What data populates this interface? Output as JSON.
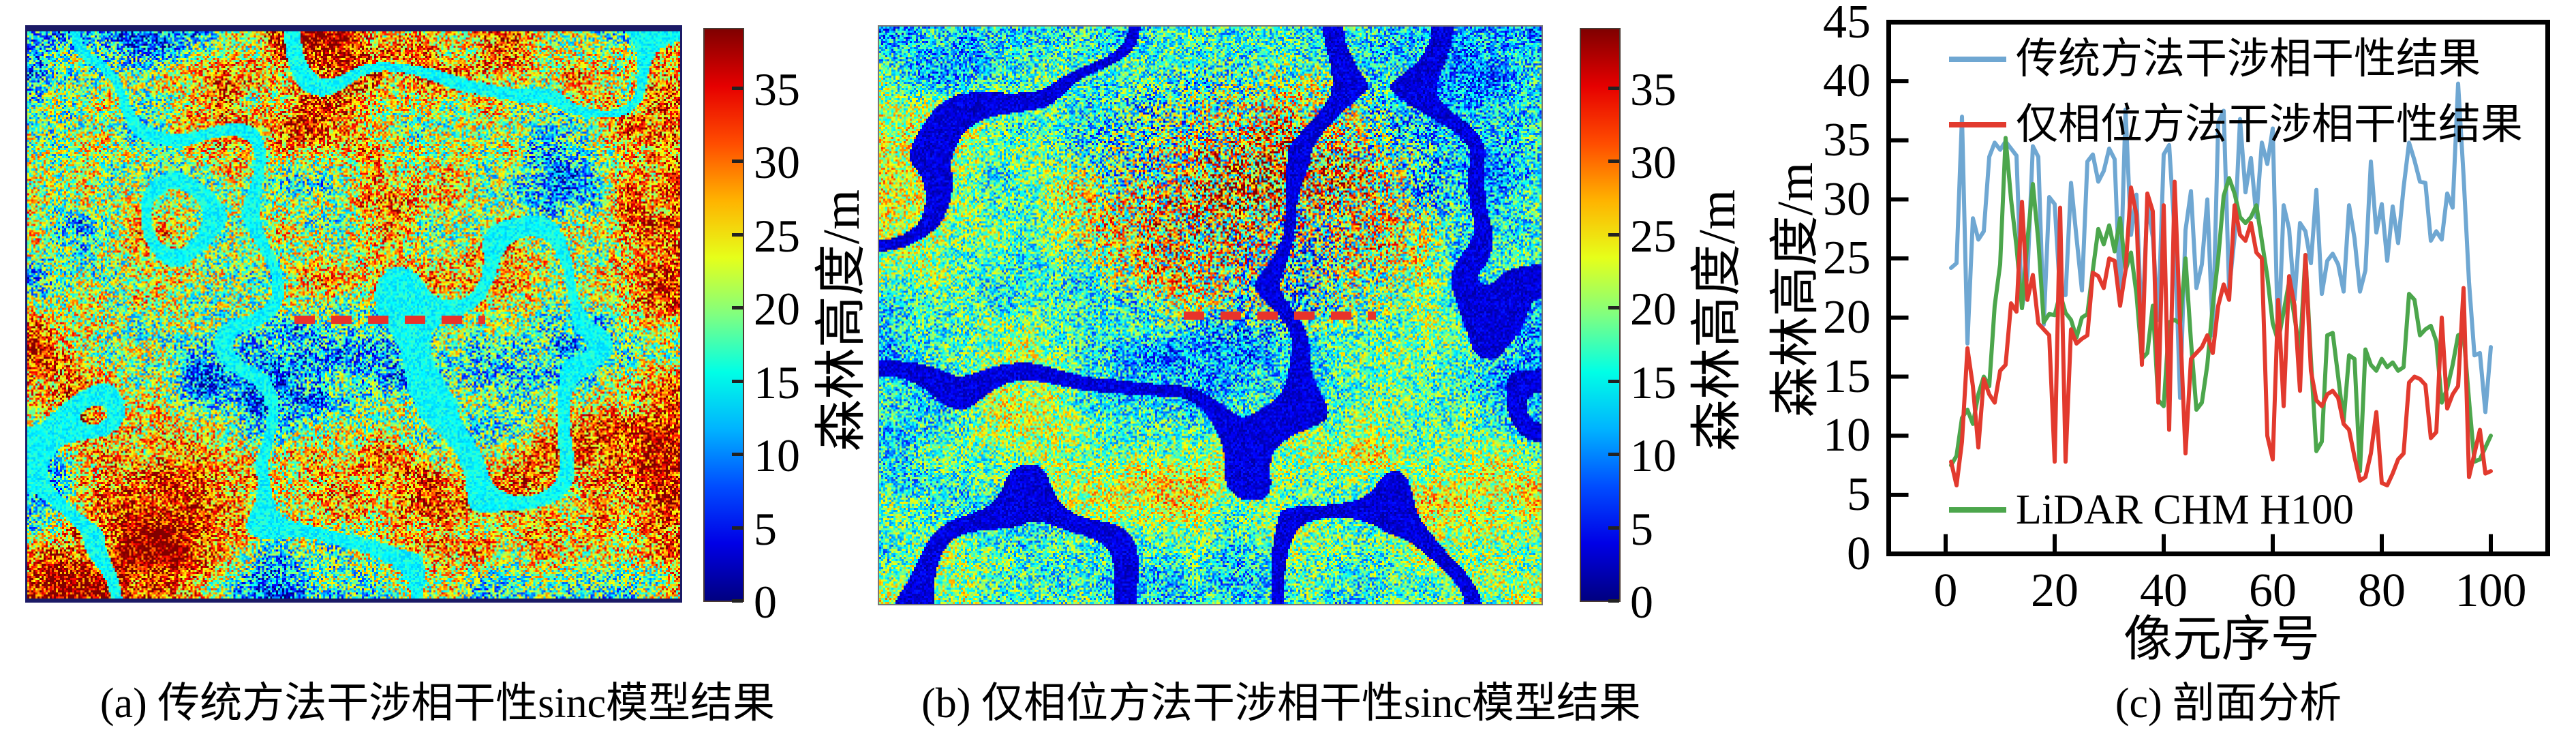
{
  "panels": {
    "a": {
      "caption": "(a) 传统方法干涉相干性sinc模型结果",
      "colorbar": {
        "label": "森林高度/m",
        "ticks": [
          35,
          30,
          25,
          20,
          15,
          10,
          5,
          0
        ],
        "vmin": 0,
        "vmax": 39
      }
    },
    "b": {
      "caption": "(b) 仅相位方法干涉相干性sinc模型结果",
      "colorbar": {
        "label": "森林高度/m",
        "ticks": [
          35,
          30,
          25,
          20,
          15,
          10,
          5,
          0
        ],
        "vmin": 0,
        "vmax": 39
      }
    },
    "c": {
      "caption": "(c) 剖面分析",
      "xlabel": "像元序号",
      "ylabel": "森林高度/m"
    }
  },
  "heatmap_meta": {
    "colormap": "jet",
    "profile_dash_color": "#E8332A",
    "panel_a_border_color": "#1B1A66"
  },
  "chart_data": {
    "type": "line",
    "title": "(c) 剖面分析",
    "xlabel": "像元序号",
    "ylabel": "森林高度/m",
    "xlim": [
      0,
      110
    ],
    "ylim": [
      0,
      45
    ],
    "xticks": [
      0,
      20,
      40,
      60,
      80,
      100
    ],
    "yticks": [
      0,
      5,
      10,
      15,
      20,
      25,
      30,
      35,
      40,
      45
    ],
    "grid": false,
    "x_start": 1,
    "x_step": 1,
    "legend_position": "inside top-left (series 1,2) and inside bottom-left (series 3)",
    "series": [
      {
        "name": "传统方法干涉相干性结果",
        "color": "#6FA7D2",
        "values": [
          24.2,
          24.6,
          37.0,
          17.8,
          28.4,
          26.6,
          27.3,
          33.6,
          34.8,
          34.2,
          34.9,
          34.3,
          33.7,
          20.8,
          23.5,
          34.5,
          33.6,
          19.4,
          30.2,
          29.6,
          22.0,
          21.9,
          31.4,
          26.8,
          22.3,
          33.2,
          33.8,
          31.5,
          32.4,
          34.3,
          33.4,
          21.7,
          37.6,
          27.0,
          30.4,
          18.7,
          29.7,
          26.8,
          19.8,
          33.8,
          34.6,
          27.2,
          13.2,
          27.4,
          30.7,
          22.5,
          24.5,
          30.0,
          18.5,
          36.5,
          37.5,
          22.4,
          26.8,
          36.8,
          30.6,
          33.5,
          28.5,
          34.8,
          33.0,
          36.0,
          17.5,
          29.5,
          27.5,
          21.5,
          28.0,
          27.3,
          24.6,
          30.8,
          22.0,
          24.8,
          25.4,
          24.5,
          22.2,
          29.5,
          26.7,
          22.2,
          24.0,
          33.2,
          27.2,
          29.6,
          24.8,
          29.4,
          26.3,
          31.0,
          34.8,
          33.3,
          31.5,
          31.4,
          26.5,
          27.3,
          26.6,
          30.5,
          29.3,
          39.8,
          32.0,
          23.0,
          16.8,
          17.0,
          12.0,
          17.5
        ]
      },
      {
        "name": "仅相位方法干涉相干性结果",
        "color": "#E23A2E",
        "values": [
          7.8,
          5.8,
          9.5,
          17.4,
          14.2,
          9.0,
          14.8,
          13.5,
          12.8,
          15.5,
          16.0,
          21.2,
          20.5,
          29.8,
          21.5,
          23.6,
          19.5,
          19.0,
          18.5,
          7.8,
          29.3,
          7.8,
          19.0,
          17.8,
          18.2,
          18.5,
          23.8,
          23.5,
          22.5,
          25.0,
          24.8,
          21.0,
          24.0,
          31.0,
          28.7,
          16.0,
          30.5,
          29.0,
          12.8,
          29.5,
          10.5,
          31.5,
          19.5,
          8.5,
          16.5,
          17.0,
          17.5,
          18.5,
          17.0,
          21.0,
          22.8,
          21.5,
          29.5,
          27.0,
          26.5,
          28.0,
          25.5,
          25.0,
          10.0,
          8.0,
          21.5,
          12.5,
          23.5,
          21.0,
          13.8,
          25.3,
          15.5,
          13.0,
          12.5,
          13.5,
          13.8,
          13.2,
          11.0,
          10.5,
          8.2,
          6.2,
          6.5,
          8.5,
          12.0,
          6.0,
          5.8,
          6.8,
          8.0,
          8.5,
          14.5,
          15.0,
          14.8,
          14.3,
          9.8,
          10.3,
          20.0,
          12.3,
          13.5,
          14.2,
          22.5,
          6.5,
          8.5,
          10.5,
          6.8,
          7.0
        ]
      },
      {
        "name": "LiDAR CHM H100",
        "color": "#4CA64C",
        "values": [
          7.5,
          8.3,
          11.5,
          12.2,
          11.0,
          13.5,
          15.0,
          14.2,
          21.0,
          24.5,
          35.2,
          30.0,
          26.0,
          20.8,
          26.5,
          31.3,
          26.5,
          19.6,
          20.3,
          20.2,
          22.0,
          20.4,
          19.8,
          18.3,
          20.0,
          20.3,
          24.0,
          27.5,
          26.2,
          27.8,
          25.6,
          28.4,
          24.0,
          25.5,
          22.0,
          16.5,
          17.0,
          21.0,
          13.0,
          12.5,
          19.6,
          19.8,
          19.5,
          25.0,
          18.0,
          12.2,
          12.8,
          16.0,
          21.0,
          25.0,
          30.3,
          31.8,
          30.5,
          28.5,
          28.0,
          28.5,
          29.5,
          26.5,
          23.5,
          19.5,
          18.0,
          20.5,
          23.0,
          20.0,
          17.2,
          25.3,
          16.5,
          8.7,
          9.5,
          18.5,
          18.7,
          15.0,
          11.2,
          16.8,
          16.5,
          7.0,
          17.3,
          16.0,
          15.5,
          16.5,
          15.8,
          16.2,
          15.5,
          15.8,
          22.0,
          21.5,
          18.5,
          19.0,
          19.3,
          18.0,
          12.8,
          14.0,
          16.0,
          18.5,
          18.7,
          13.0,
          7.8,
          8.0,
          9.0,
          10.0
        ]
      }
    ]
  }
}
